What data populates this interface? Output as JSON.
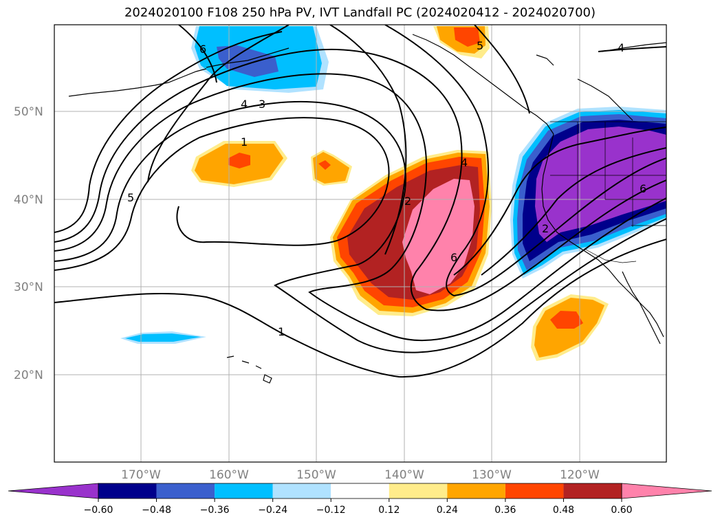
{
  "title": "2024020100 F108 250 hPa PV, IVT Landfall PC (2024020412 - 2024020700)",
  "lat_labels": [
    "50°N",
    "40°N",
    "30°N",
    "20°N"
  ],
  "lon_labels": [
    "170°W",
    "160°W",
    "150°W",
    "140°W",
    "130°W",
    "120°W"
  ],
  "colorbar": {
    "colors": [
      "#9932cc",
      "#00008b",
      "#3a5fcd",
      "#00bfff",
      "#b0e2ff",
      "#ffffff",
      "#ffec8b",
      "#ffa500",
      "#ff4500",
      "#b22222",
      "#ff82ab"
    ],
    "tick_labels": [
      "−0.60",
      "−0.48",
      "−0.36",
      "−0.24",
      "−0.12",
      "0.12",
      "0.24",
      "0.36",
      "0.48",
      "0.60"
    ]
  },
  "contour_labels": [
    "6",
    "4",
    "3",
    "1",
    "5",
    "2",
    "6",
    "4",
    "5",
    "4",
    "1",
    "2",
    "6"
  ]
}
